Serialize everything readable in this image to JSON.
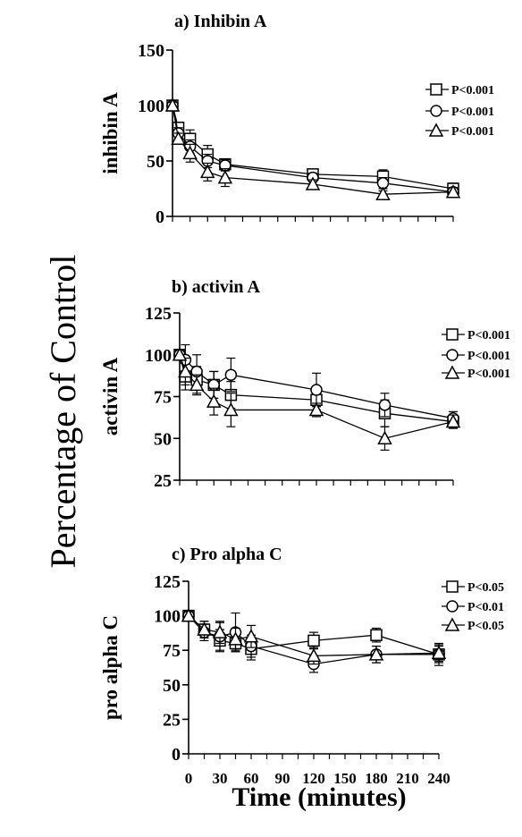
{
  "figure": {
    "ylabel": "Percentage of Control",
    "xlabel": "Time (minutes)",
    "x_tick_labels": [
      "0",
      "30",
      "60",
      "90",
      "120",
      "150",
      "180",
      "210",
      "240"
    ]
  },
  "chart_data": [
    {
      "type": "line",
      "title": "a) Inhibin A",
      "ylabel": "inhibin A",
      "xlabel": "",
      "ylim": [
        0,
        150
      ],
      "xlim": [
        0,
        240
      ],
      "yticks": [
        0,
        50,
        100,
        150
      ],
      "x_tick_labels_shown": false,
      "legend": "right",
      "series": [
        {
          "name": "P<0.001",
          "marker": "square",
          "x": [
            0,
            5,
            15,
            30,
            45,
            120,
            180,
            240
          ],
          "y": [
            100,
            80,
            70,
            56,
            47,
            38,
            36,
            25
          ],
          "err": [
            3,
            4,
            8,
            8,
            5,
            4,
            6,
            5
          ]
        },
        {
          "name": "P<0.001",
          "marker": "circle",
          "x": [
            0,
            5,
            15,
            30,
            45,
            120,
            180,
            240
          ],
          "y": [
            100,
            75,
            63,
            50,
            46,
            35,
            30,
            22
          ],
          "err": [
            3,
            5,
            6,
            6,
            5,
            4,
            5,
            4
          ]
        },
        {
          "name": "P<0.001",
          "marker": "triangle",
          "x": [
            0,
            5,
            15,
            30,
            45,
            120,
            180,
            240
          ],
          "y": [
            100,
            70,
            57,
            40,
            35,
            29,
            20,
            22
          ],
          "err": [
            3,
            5,
            8,
            8,
            8,
            4,
            3,
            4
          ]
        }
      ]
    },
    {
      "type": "line",
      "title": "b) activin A",
      "ylabel": "activin A",
      "xlabel": "",
      "ylim": [
        25,
        125
      ],
      "xlim": [
        0,
        240
      ],
      "yticks": [
        25,
        50,
        75,
        100,
        125
      ],
      "x_tick_labels_shown": false,
      "legend": "right",
      "series": [
        {
          "name": "P<0.001",
          "marker": "square",
          "x": [
            0,
            5,
            15,
            30,
            45,
            120,
            180,
            240
          ],
          "y": [
            100,
            87,
            85,
            82,
            76,
            73,
            65,
            60
          ],
          "err": [
            3,
            8,
            8,
            8,
            8,
            6,
            8,
            4
          ]
        },
        {
          "name": "P<0.001",
          "marker": "circle",
          "x": [
            0,
            5,
            15,
            30,
            45,
            120,
            180,
            240
          ],
          "y": [
            100,
            97,
            90,
            82,
            88,
            79,
            70,
            62
          ],
          "err": [
            3,
            9,
            10,
            8,
            10,
            10,
            7,
            4
          ]
        },
        {
          "name": "P<0.001",
          "marker": "triangle",
          "x": [
            0,
            5,
            15,
            30,
            45,
            120,
            180,
            240
          ],
          "y": [
            100,
            90,
            82,
            72,
            67,
            67,
            50,
            60
          ],
          "err": [
            3,
            8,
            6,
            8,
            10,
            4,
            7,
            4
          ]
        }
      ]
    },
    {
      "type": "line",
      "title": "c) Pro alpha C",
      "ylabel": "pro alpha C",
      "xlabel": "Time (minutes)",
      "ylim": [
        0,
        125
      ],
      "xlim": [
        0,
        240
      ],
      "yticks": [
        0,
        25,
        50,
        75,
        100,
        125
      ],
      "xticks": [
        0,
        30,
        60,
        90,
        120,
        150,
        180,
        210,
        240
      ],
      "x_tick_labels_shown": true,
      "legend": "right",
      "series": [
        {
          "name": "P<0.05",
          "marker": "square",
          "x": [
            0,
            15,
            30,
            45,
            60,
            120,
            180,
            240
          ],
          "y": [
            100,
            90,
            82,
            80,
            76,
            82,
            86,
            72
          ],
          "err": [
            3,
            6,
            8,
            6,
            8,
            6,
            5,
            8
          ]
        },
        {
          "name": "P<0.01",
          "marker": "circle",
          "x": [
            0,
            15,
            30,
            45,
            60,
            120,
            180,
            240
          ],
          "y": [
            100,
            88,
            85,
            88,
            78,
            65,
            72,
            72
          ],
          "err": [
            3,
            6,
            10,
            14,
            8,
            6,
            6,
            6
          ]
        },
        {
          "name": "P<0.05",
          "marker": "triangle",
          "x": [
            0,
            15,
            30,
            45,
            60,
            120,
            180,
            240
          ],
          "y": [
            100,
            90,
            88,
            83,
            85,
            71,
            72,
            73
          ],
          "err": [
            3,
            6,
            8,
            8,
            8,
            6,
            6,
            6
          ]
        }
      ]
    }
  ]
}
